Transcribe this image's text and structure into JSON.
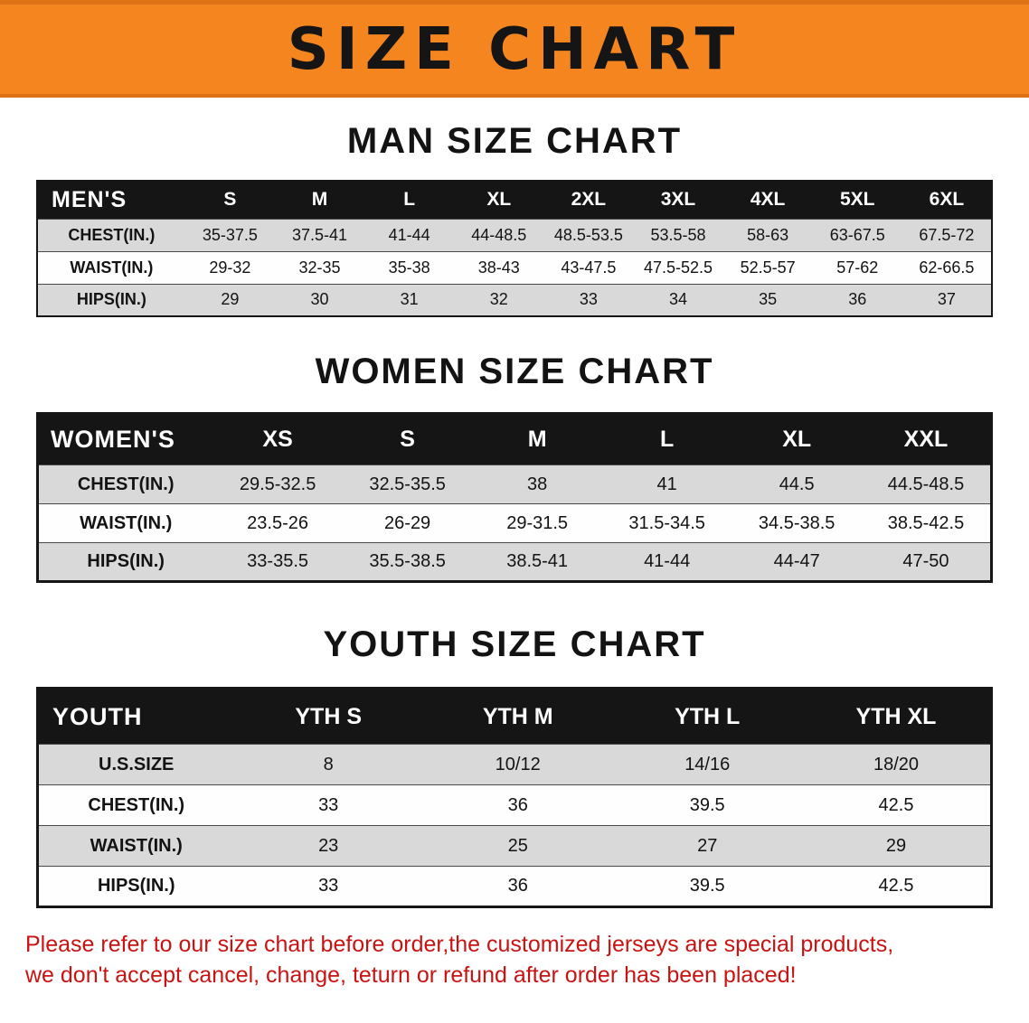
{
  "banner": {
    "title": "SIZE CHART",
    "bg_color": "#f5861f",
    "text_color": "#151515"
  },
  "men": {
    "heading": "MAN SIZE CHART",
    "table": {
      "header": [
        "MEN'S",
        "S",
        "M",
        "L",
        "XL",
        "2XL",
        "3XL",
        "4XL",
        "5XL",
        "6XL"
      ],
      "rows": [
        [
          "CHEST(IN.)",
          "35-37.5",
          "37.5-41",
          "41-44",
          "44-48.5",
          "48.5-53.5",
          "53.5-58",
          "58-63",
          "63-67.5",
          "67.5-72"
        ],
        [
          "WAIST(IN.)",
          "29-32",
          "32-35",
          "35-38",
          "38-43",
          "43-47.5",
          "47.5-52.5",
          "52.5-57",
          "57-62",
          "62-66.5"
        ],
        [
          "HIPS(IN.)",
          "29",
          "30",
          "31",
          "32",
          "33",
          "34",
          "35",
          "36",
          "37"
        ]
      ]
    }
  },
  "women": {
    "heading": "WOMEN SIZE CHART",
    "table": {
      "header": [
        "WOMEN'S",
        "XS",
        "S",
        "M",
        "L",
        "XL",
        "XXL"
      ],
      "rows": [
        [
          "CHEST(IN.)",
          "29.5-32.5",
          "32.5-35.5",
          "38",
          "41",
          "44.5",
          "44.5-48.5"
        ],
        [
          "WAIST(IN.)",
          "23.5-26",
          "26-29",
          "29-31.5",
          "31.5-34.5",
          "34.5-38.5",
          "38.5-42.5"
        ],
        [
          "HIPS(IN.)",
          "33-35.5",
          "35.5-38.5",
          "38.5-41",
          "41-44",
          "44-47",
          "47-50"
        ]
      ]
    }
  },
  "youth": {
    "heading": "YOUTH SIZE CHART",
    "table": {
      "header": [
        "YOUTH",
        "YTH S",
        "YTH M",
        "YTH L",
        "YTH XL"
      ],
      "rows": [
        [
          "U.S.SIZE",
          "8",
          "10/12",
          "14/16",
          "18/20"
        ],
        [
          "CHEST(IN.)",
          "33",
          "36",
          "39.5",
          "42.5"
        ],
        [
          "WAIST(IN.)",
          "23",
          "25",
          "27",
          "29"
        ],
        [
          "HIPS(IN.)",
          "33",
          "36",
          "39.5",
          "42.5"
        ]
      ]
    }
  },
  "disclaimer": {
    "line1": "Please refer to our size chart before order,the customized jerseys are special products,",
    "line2": "we don't accept cancel, change, teturn or refund after order has been placed!",
    "text_color": "#c91313"
  }
}
